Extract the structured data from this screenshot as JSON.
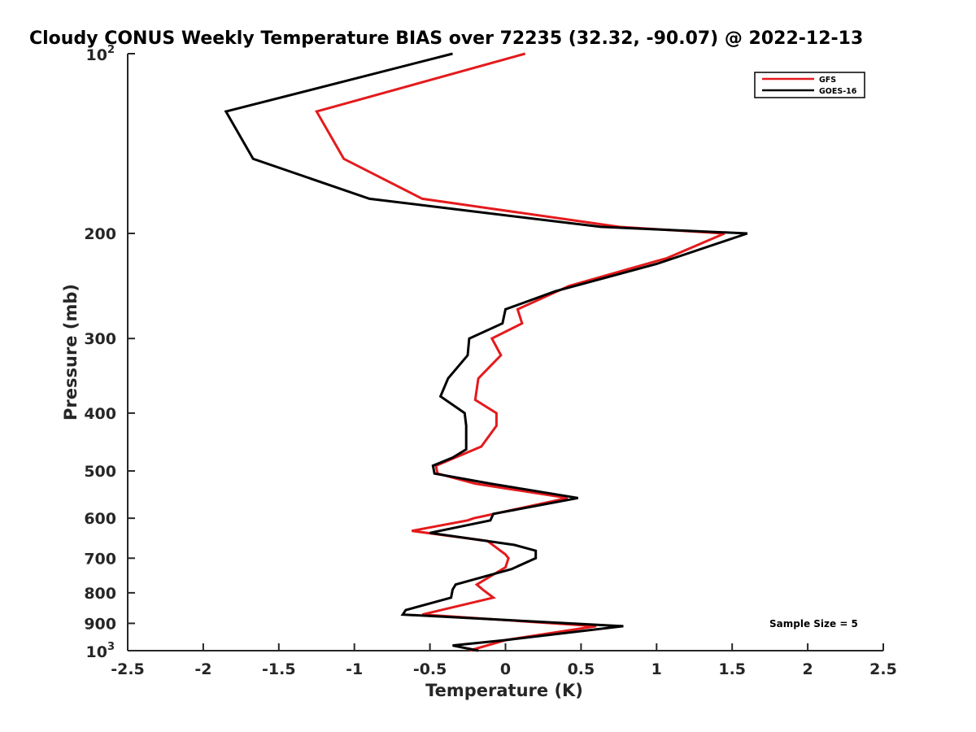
{
  "chart_data": {
    "type": "line",
    "title": "Cloudy CONUS Weekly Temperature BIAS over 72235 (32.32, -90.07) @ 2022-12-13",
    "xlabel": "Temperature (K)",
    "ylabel": "Pressure (mb)",
    "xlim": [
      -2.5,
      2.5
    ],
    "ylim": [
      100,
      1000
    ],
    "y_scale": "log",
    "y_reversed": true,
    "x_ticks": [
      -2.5,
      -2,
      -1.5,
      -1,
      -0.5,
      0,
      0.5,
      1,
      1.5,
      2,
      2.5
    ],
    "x_tick_labels": [
      "-2.5",
      "-2",
      "-1.5",
      "-1",
      "-0.5",
      "0",
      "0.5",
      "1",
      "1.5",
      "2",
      "2.5"
    ],
    "y_ticks": [
      {
        "value": 100,
        "base": "10",
        "exp": "2"
      },
      {
        "value": 200,
        "label": "200"
      },
      {
        "value": 300,
        "label": "300"
      },
      {
        "value": 400,
        "label": "400"
      },
      {
        "value": 500,
        "label": "500"
      },
      {
        "value": 600,
        "label": "600"
      },
      {
        "value": 700,
        "label": "700"
      },
      {
        "value": 800,
        "label": "800"
      },
      {
        "value": 900,
        "label": "900"
      },
      {
        "value": 1000,
        "base": "10",
        "exp": "3"
      }
    ],
    "series": [
      {
        "name": "GFS",
        "color": "#e41a1c",
        "points": [
          [
            0.13,
            100
          ],
          [
            -1.25,
            125
          ],
          [
            -1.07,
            150
          ],
          [
            -0.55,
            175
          ],
          [
            0.75,
            195
          ],
          [
            1.45,
            200
          ],
          [
            1.07,
            220
          ],
          [
            0.42,
            245
          ],
          [
            0.08,
            268
          ],
          [
            0.11,
            283
          ],
          [
            -0.09,
            300
          ],
          [
            -0.03,
            320
          ],
          [
            -0.18,
            350
          ],
          [
            -0.2,
            380
          ],
          [
            -0.06,
            400
          ],
          [
            -0.06,
            420
          ],
          [
            -0.16,
            455
          ],
          [
            -0.46,
            490
          ],
          [
            -0.45,
            505
          ],
          [
            -0.2,
            525
          ],
          [
            0.41,
            555
          ],
          [
            -0.21,
            600
          ],
          [
            -0.25,
            605
          ],
          [
            -0.62,
            630
          ],
          [
            -0.12,
            655
          ],
          [
            0.0,
            690
          ],
          [
            0.02,
            700
          ],
          [
            0.0,
            725
          ],
          [
            -0.19,
            775
          ],
          [
            -0.15,
            790
          ],
          [
            -0.08,
            815
          ],
          [
            -0.55,
            870
          ],
          [
            0.6,
            910
          ],
          [
            0.0,
            960
          ],
          [
            -0.24,
            1000
          ]
        ]
      },
      {
        "name": "GOES-16",
        "color": "#000000",
        "points": [
          [
            -0.35,
            100
          ],
          [
            -1.85,
            125
          ],
          [
            -1.67,
            150
          ],
          [
            -0.9,
            175
          ],
          [
            0.63,
            195
          ],
          [
            1.6,
            200
          ],
          [
            1.0,
            225
          ],
          [
            0.33,
            250
          ],
          [
            0.0,
            268
          ],
          [
            -0.02,
            283
          ],
          [
            -0.24,
            300
          ],
          [
            -0.25,
            320
          ],
          [
            -0.38,
            350
          ],
          [
            -0.43,
            375
          ],
          [
            -0.27,
            400
          ],
          [
            -0.26,
            420
          ],
          [
            -0.26,
            460
          ],
          [
            -0.35,
            475
          ],
          [
            -0.48,
            490
          ],
          [
            -0.47,
            505
          ],
          [
            -0.1,
            525
          ],
          [
            0.48,
            555
          ],
          [
            -0.08,
            590
          ],
          [
            -0.1,
            605
          ],
          [
            -0.5,
            635
          ],
          [
            0.06,
            665
          ],
          [
            0.2,
            680
          ],
          [
            0.2,
            700
          ],
          [
            0.04,
            730
          ],
          [
            -0.33,
            775
          ],
          [
            -0.35,
            790
          ],
          [
            -0.36,
            815
          ],
          [
            -0.66,
            855
          ],
          [
            -0.68,
            870
          ],
          [
            0.78,
            910
          ],
          [
            0.0,
            960
          ],
          [
            -0.35,
            980
          ],
          [
            -0.18,
            1000
          ]
        ]
      }
    ],
    "legend_position": "top-right",
    "annotation": "Sample Size = 5"
  }
}
